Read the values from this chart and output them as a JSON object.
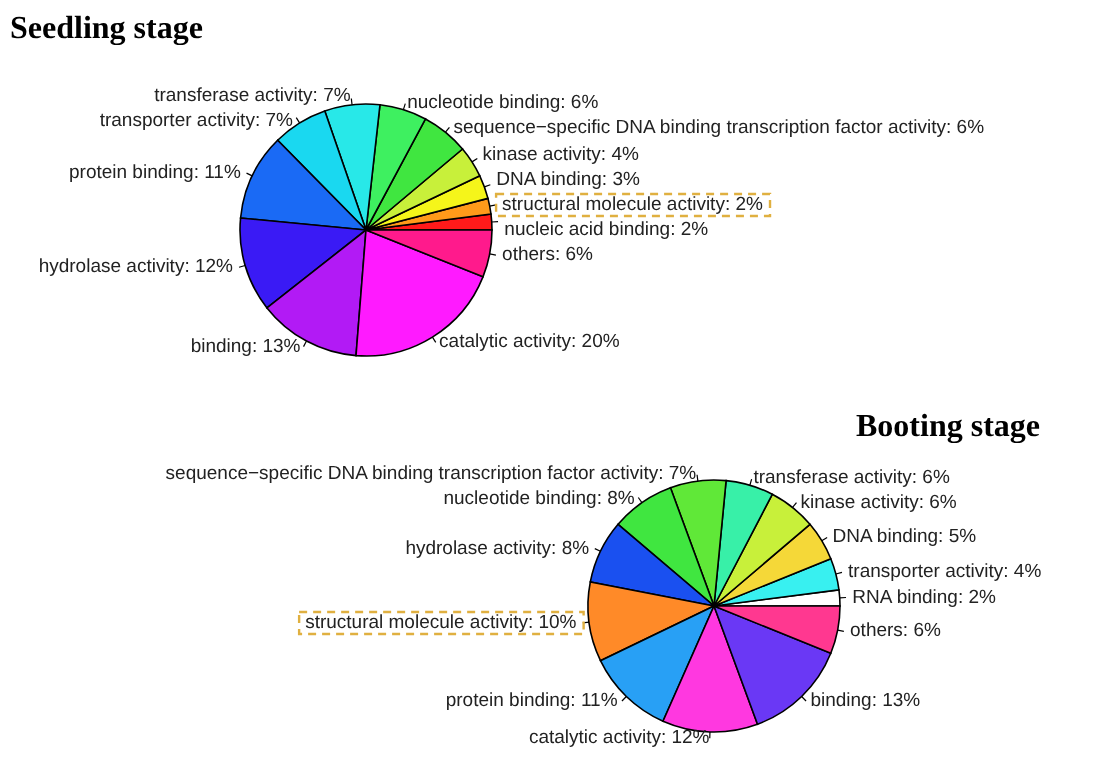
{
  "chart_data": [
    {
      "type": "pie",
      "title": "Seedling stage",
      "categories": [
        "nucleic acid binding",
        "structural molecule activity",
        "DNA binding",
        "kinase activity",
        "sequence−specific DNA binding transcription factor activity",
        "nucleotide binding",
        "transferase activity",
        "transporter activity",
        "protein binding",
        "hydrolase activity",
        "binding",
        "catalytic activity",
        "others"
      ],
      "values": [
        2,
        2,
        3,
        4,
        6,
        6,
        7,
        7,
        11,
        12,
        13,
        20,
        6
      ],
      "value_labels": [
        "2%",
        "2%",
        "3%",
        "4%",
        "6%",
        "6%",
        "7%",
        "7%",
        "11%",
        "12%",
        "13%",
        "20%",
        "6%"
      ],
      "colors": [
        "#ff1a1a",
        "#ff9a1a",
        "#f5f51a",
        "#c8f03a",
        "#40e640",
        "#3ef060",
        "#28e8e8",
        "#1ad8f0",
        "#1a6af5",
        "#3a1af5",
        "#b21af5",
        "#ff1aff",
        "#ff1a8c"
      ]
    },
    {
      "type": "pie",
      "title": "Booting stage",
      "categories": [
        "RNA binding",
        "transporter activity",
        "DNA binding",
        "kinase activity",
        "transferase activity",
        "sequence−specific DNA binding transcription factor activity",
        "nucleotide binding",
        "hydrolase activity",
        "structural molecule activity",
        "protein binding",
        "catalytic activity",
        "binding",
        "others"
      ],
      "values": [
        2,
        4,
        5,
        6,
        6,
        7,
        8,
        8,
        10,
        11,
        12,
        13,
        6
      ],
      "value_labels": [
        "2%",
        "4%",
        "5%",
        "6%",
        "6%",
        "7%",
        "8%",
        "8%",
        "10%",
        "11%",
        "12%",
        "13%",
        "6%"
      ],
      "colors": [
        "#ffffff",
        "#38f0f0",
        "#f5d838",
        "#c8f03a",
        "#38f0a8",
        "#60e838",
        "#40e640",
        "#1a50f0",
        "#ff8a28",
        "#28a0f5",
        "#ff38e0",
        "#6a38f5",
        "#ff3890"
      ]
    }
  ]
}
